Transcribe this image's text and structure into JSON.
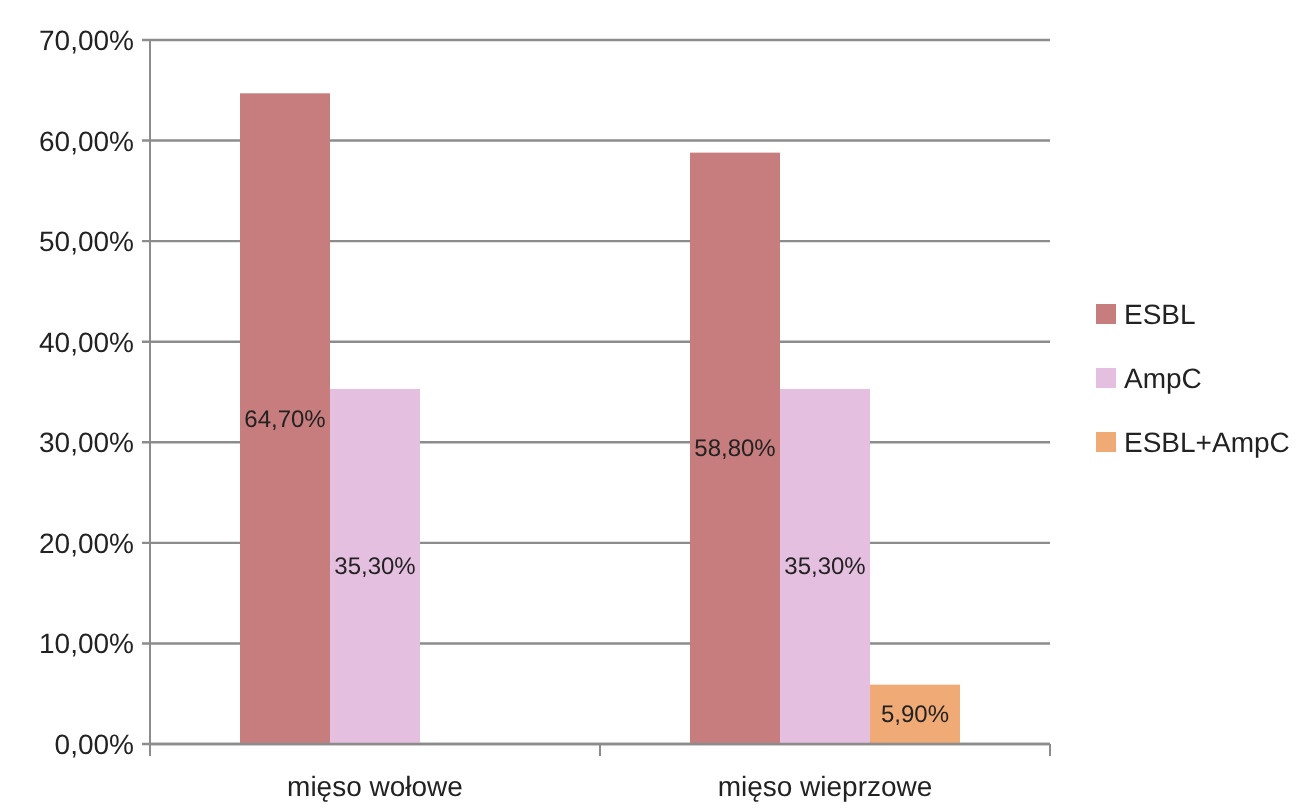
{
  "chart_data": {
    "type": "bar",
    "categories": [
      "mięso wołowe",
      "mięso wieprzowe"
    ],
    "series": [
      {
        "name": "ESBL",
        "color": "#c77d7d",
        "values": [
          64.7,
          58.8
        ],
        "value_labels": [
          "64,70%",
          "58,80%"
        ]
      },
      {
        "name": "AmpC",
        "color": "#e5bfdf",
        "values": [
          35.3,
          35.3
        ],
        "value_labels": [
          "35,30%",
          "35,30%"
        ]
      },
      {
        "name": "ESBL+AmpC",
        "color": "#f0aa76",
        "values": [
          null,
          5.9
        ],
        "value_labels": [
          null,
          "5,90%"
        ]
      }
    ],
    "ylim": [
      0,
      70
    ],
    "yticks": [
      {
        "value": 0,
        "label": "0,00%"
      },
      {
        "value": 10,
        "label": "10,00%"
      },
      {
        "value": 20,
        "label": "20,00%"
      },
      {
        "value": 30,
        "label": "30,00%"
      },
      {
        "value": 40,
        "label": "40,00%"
      },
      {
        "value": 50,
        "label": "50,00%"
      },
      {
        "value": 60,
        "label": "60,00%"
      },
      {
        "value": 70,
        "label": "70,00%"
      }
    ],
    "grid": "y",
    "legend": "right"
  }
}
